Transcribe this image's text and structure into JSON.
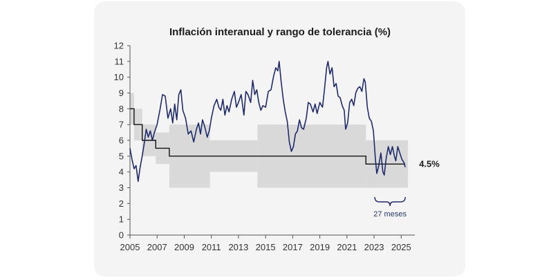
{
  "chart_data": {
    "type": "line",
    "title": "Inflación interanual y rango de tolerancia (%)",
    "xlabel": "",
    "ylabel": "",
    "xlim": [
      2005,
      2025.8
    ],
    "ylim": [
      0,
      12
    ],
    "yticks": [
      0,
      1,
      2,
      3,
      4,
      5,
      6,
      7,
      8,
      9,
      10,
      11,
      12
    ],
    "xticks": [
      2005,
      2007,
      2009,
      2011,
      2013,
      2015,
      2017,
      2019,
      2021,
      2023,
      2025
    ],
    "grid": false,
    "colors": {
      "inflation": "#1f2a6b",
      "target": "#111111",
      "band": "#d9d9d9"
    },
    "tolerance_band": [
      {
        "x0": 2005.0,
        "x1": 2005.3,
        "low": 7.0,
        "high": 9.0
      },
      {
        "x0": 2005.3,
        "x1": 2005.9,
        "low": 6.0,
        "high": 8.0
      },
      {
        "x0": 2005.9,
        "x1": 2006.3,
        "low": 5.0,
        "high": 7.0
      },
      {
        "x0": 2006.3,
        "x1": 2006.9,
        "low": 5.0,
        "high": 7.0
      },
      {
        "x0": 2006.9,
        "x1": 2007.9,
        "low": 4.5,
        "high": 6.5
      },
      {
        "x0": 2007.9,
        "x1": 2010.9,
        "low": 3.0,
        "high": 7.0
      },
      {
        "x0": 2010.9,
        "x1": 2014.4,
        "low": 4.0,
        "high": 6.0
      },
      {
        "x0": 2014.4,
        "x1": 2022.4,
        "low": 3.0,
        "high": 7.0
      },
      {
        "x0": 2022.4,
        "x1": 2025.5,
        "low": 3.0,
        "high": 6.0
      }
    ],
    "series": [
      {
        "name": "",
        "values": [
          [
            2005.0,
            5.5
          ],
          [
            2005.15,
            4.8
          ],
          [
            2005.3,
            4.2
          ],
          [
            2005.45,
            4.4
          ],
          [
            2005.6,
            3.4
          ],
          [
            2005.75,
            4.3
          ],
          [
            2005.9,
            5.0
          ],
          [
            2006.05,
            5.8
          ],
          [
            2006.2,
            6.7
          ],
          [
            2006.35,
            6.2
          ],
          [
            2006.5,
            6.6
          ],
          [
            2006.65,
            6.0
          ],
          [
            2006.8,
            6.5
          ],
          [
            2007.0,
            7.0
          ],
          [
            2007.2,
            7.9
          ],
          [
            2007.4,
            8.9
          ],
          [
            2007.6,
            8.8
          ],
          [
            2007.8,
            7.4
          ],
          [
            2008.0,
            8.0
          ],
          [
            2008.15,
            7.1
          ],
          [
            2008.3,
            8.3
          ],
          [
            2008.45,
            7.3
          ],
          [
            2008.6,
            8.9
          ],
          [
            2008.75,
            9.2
          ],
          [
            2008.9,
            7.9
          ],
          [
            2009.1,
            7.4
          ],
          [
            2009.3,
            6.4
          ],
          [
            2009.5,
            6.6
          ],
          [
            2009.7,
            5.9
          ],
          [
            2009.9,
            6.7
          ],
          [
            2010.05,
            7.1
          ],
          [
            2010.2,
            6.4
          ],
          [
            2010.35,
            7.3
          ],
          [
            2010.5,
            6.9
          ],
          [
            2010.7,
            6.2
          ],
          [
            2010.85,
            6.6
          ],
          [
            2011.0,
            7.4
          ],
          [
            2011.2,
            8.2
          ],
          [
            2011.4,
            8.6
          ],
          [
            2011.55,
            8.1
          ],
          [
            2011.7,
            7.9
          ],
          [
            2011.85,
            8.6
          ],
          [
            2012.0,
            7.6
          ],
          [
            2012.15,
            8.2
          ],
          [
            2012.3,
            7.8
          ],
          [
            2012.5,
            8.6
          ],
          [
            2012.7,
            9.1
          ],
          [
            2012.85,
            8.1
          ],
          [
            2013.0,
            8.4
          ],
          [
            2013.2,
            8.9
          ],
          [
            2013.4,
            7.6
          ],
          [
            2013.55,
            9.1
          ],
          [
            2013.7,
            8.9
          ],
          [
            2013.9,
            8.4
          ],
          [
            2014.05,
            9.8
          ],
          [
            2014.2,
            8.9
          ],
          [
            2014.35,
            9.2
          ],
          [
            2014.5,
            8.4
          ],
          [
            2014.65,
            7.9
          ],
          [
            2014.8,
            8.2
          ],
          [
            2015.0,
            8.1
          ],
          [
            2015.2,
            9.1
          ],
          [
            2015.4,
            9.2
          ],
          [
            2015.6,
            10.1
          ],
          [
            2015.75,
            10.6
          ],
          [
            2015.9,
            10.4
          ],
          [
            2016.0,
            11.0
          ],
          [
            2016.15,
            9.7
          ],
          [
            2016.3,
            8.6
          ],
          [
            2016.45,
            7.8
          ],
          [
            2016.6,
            7.2
          ],
          [
            2016.75,
            5.9
          ],
          [
            2016.9,
            5.3
          ],
          [
            2017.05,
            5.6
          ],
          [
            2017.2,
            6.4
          ],
          [
            2017.35,
            6.6
          ],
          [
            2017.5,
            7.3
          ],
          [
            2017.65,
            6.8
          ],
          [
            2017.8,
            6.7
          ],
          [
            2018.0,
            7.4
          ],
          [
            2018.15,
            8.4
          ],
          [
            2018.3,
            8.3
          ],
          [
            2018.5,
            7.8
          ],
          [
            2018.65,
            8.3
          ],
          [
            2018.8,
            7.7
          ],
          [
            2019.0,
            8.4
          ],
          [
            2019.2,
            8.1
          ],
          [
            2019.35,
            9.3
          ],
          [
            2019.5,
            10.6
          ],
          [
            2019.6,
            11.0
          ],
          [
            2019.75,
            10.2
          ],
          [
            2019.9,
            10.6
          ],
          [
            2020.05,
            9.4
          ],
          [
            2020.2,
            9.6
          ],
          [
            2020.35,
            8.8
          ],
          [
            2020.5,
            8.7
          ],
          [
            2020.65,
            8.2
          ],
          [
            2020.8,
            7.9
          ],
          [
            2020.9,
            6.7
          ],
          [
            2021.05,
            7.1
          ],
          [
            2021.2,
            8.4
          ],
          [
            2021.35,
            8.6
          ],
          [
            2021.5,
            8.2
          ],
          [
            2021.65,
            9.0
          ],
          [
            2021.8,
            9.3
          ],
          [
            2021.95,
            9.4
          ],
          [
            2022.1,
            9.1
          ],
          [
            2022.25,
            9.9
          ],
          [
            2022.35,
            9.7
          ],
          [
            2022.5,
            8.1
          ],
          [
            2022.65,
            7.4
          ],
          [
            2022.8,
            7.2
          ],
          [
            2022.95,
            6.6
          ],
          [
            2023.1,
            4.8
          ],
          [
            2023.2,
            3.9
          ],
          [
            2023.35,
            4.4
          ],
          [
            2023.5,
            5.2
          ],
          [
            2023.65,
            4.0
          ],
          [
            2023.75,
            3.8
          ],
          [
            2023.9,
            4.9
          ],
          [
            2024.05,
            5.6
          ],
          [
            2024.2,
            5.1
          ],
          [
            2024.35,
            5.6
          ],
          [
            2024.5,
            5.0
          ],
          [
            2024.6,
            4.7
          ],
          [
            2024.75,
            5.6
          ],
          [
            2024.9,
            5.2
          ],
          [
            2025.05,
            4.8
          ],
          [
            2025.2,
            4.6
          ],
          [
            2025.3,
            4.3
          ]
        ]
      },
      {
        "name": "",
        "step": true,
        "values": [
          [
            2005.0,
            8.0
          ],
          [
            2005.3,
            8.0
          ],
          [
            2005.3,
            7.0
          ],
          [
            2005.9,
            7.0
          ],
          [
            2005.9,
            6.0
          ],
          [
            2006.9,
            6.0
          ],
          [
            2006.9,
            5.5
          ],
          [
            2007.9,
            5.5
          ],
          [
            2007.9,
            5.0
          ],
          [
            2022.4,
            5.0
          ],
          [
            2022.4,
            4.5
          ],
          [
            2025.3,
            4.5
          ]
        ]
      }
    ],
    "annotations": [
      {
        "text": "4.5%",
        "x": 2025.3,
        "y": 4.5
      },
      {
        "text": "27 meses",
        "x0": 2023.05,
        "x1": 2025.3
      }
    ]
  }
}
